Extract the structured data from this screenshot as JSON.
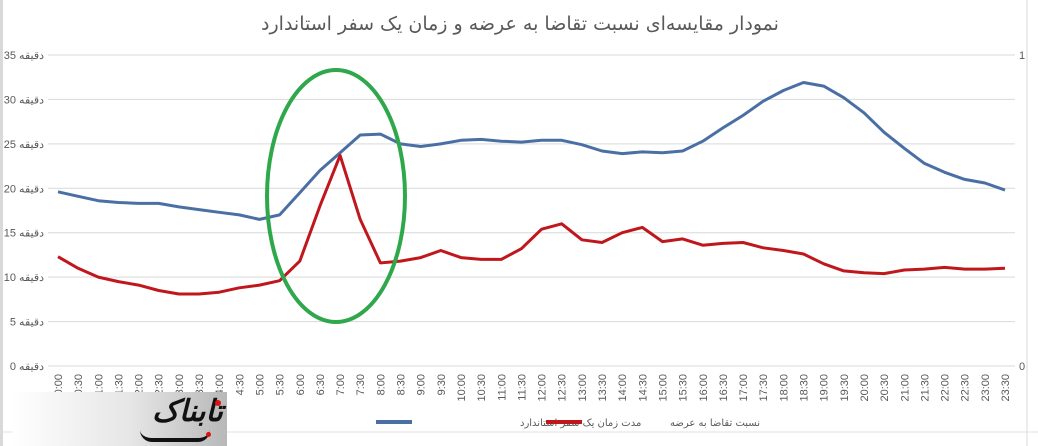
{
  "chart_data": {
    "type": "line",
    "title": "نمودار مقایسه‌ای نسبت تقاضا به عرضه و زمان یک سفر استاندارد",
    "xlabel": "",
    "ylabel": "",
    "y_unit_label": "دقیقه",
    "ylim": [
      0,
      35
    ],
    "y_ticks": [
      0,
      5,
      10,
      15,
      20,
      25,
      30,
      35
    ],
    "y_tick_labels": [
      "0 دقیقه",
      "5 دقیقه",
      "10 دقیقه",
      "15 دقیقه",
      "20 دقیقه",
      "25 دقیقه",
      "30 دقیقه",
      "35 دقیقه"
    ],
    "secondary_ylim": [
      0,
      1
    ],
    "secondary_y_tick_labels": [
      "0",
      "1"
    ],
    "grid": true,
    "legend_position": "bottom",
    "categories": [
      "0:00",
      "0:30",
      "1:00",
      "1:30",
      "2:00",
      "2:30",
      "3:00",
      "3:30",
      "4:00",
      "4:30",
      "5:00",
      "5:30",
      "6:00",
      "6:30",
      "7:00",
      "7:30",
      "8:00",
      "8:30",
      "9:00",
      "9:30",
      "10:00",
      "10:30",
      "11:00",
      "11:30",
      "12:00",
      "12:30",
      "13:00",
      "13:30",
      "14:00",
      "14:30",
      "15:00",
      "15:30",
      "16:00",
      "16:30",
      "17:00",
      "17:30",
      "18:00",
      "18:30",
      "19:00",
      "19:30",
      "20:00",
      "20:30",
      "21:00",
      "21:30",
      "22:00",
      "22:30",
      "23:00",
      "23:30"
    ],
    "series": [
      {
        "name": "مدت زمان یک سفر استاندارد",
        "color": "#4a6fa5",
        "values": [
          19.6,
          19.1,
          18.6,
          18.4,
          18.3,
          18.3,
          17.9,
          17.6,
          17.3,
          17.0,
          16.5,
          17.0,
          19.5,
          22.0,
          24.0,
          26.0,
          26.1,
          25.0,
          24.7,
          25.0,
          25.4,
          25.5,
          25.3,
          25.2,
          25.4,
          25.4,
          24.9,
          24.2,
          23.9,
          24.1,
          24.0,
          24.2,
          25.3,
          26.8,
          28.2,
          29.8,
          31.0,
          31.9,
          31.5,
          30.2,
          28.5,
          26.3,
          24.5,
          22.8,
          21.8,
          21.0,
          20.6,
          19.8
        ]
      },
      {
        "name": "نسبت تقاضا به عرضه",
        "color": "#c0171d",
        "values": [
          12.3,
          11.0,
          10.0,
          9.5,
          9.1,
          8.5,
          8.1,
          8.1,
          8.3,
          8.8,
          9.1,
          9.6,
          11.8,
          18.0,
          23.7,
          16.5,
          11.6,
          11.8,
          12.2,
          13.0,
          12.2,
          12.0,
          12.0,
          13.2,
          15.4,
          16.0,
          14.2,
          13.9,
          15.0,
          15.6,
          14.0,
          14.3,
          13.6,
          13.8,
          13.9,
          13.3,
          13.0,
          12.6,
          11.5,
          10.7,
          10.5,
          10.4,
          10.8,
          10.9,
          11.1,
          10.9,
          10.9,
          11.0
        ]
      }
    ],
    "annotations": [
      {
        "type": "ellipse",
        "color": "#2ea84a",
        "around": "6:30-7:30 peak"
      }
    ]
  },
  "watermark": {
    "text": "تابناک"
  }
}
